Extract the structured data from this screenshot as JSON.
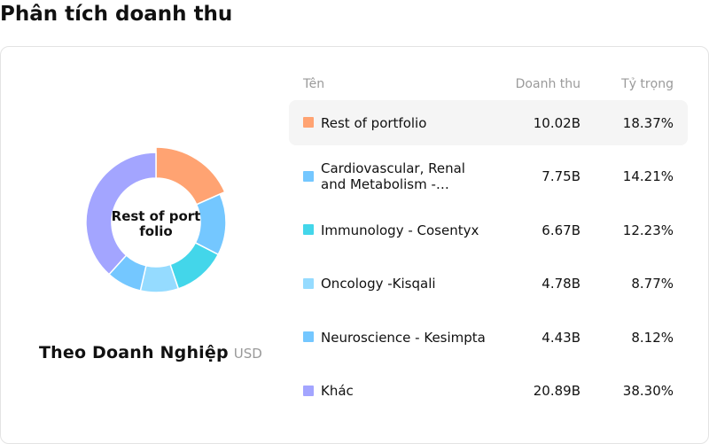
{
  "page_title": "Phân tích doanh thu",
  "donut": {
    "center_label": "Rest of portfolio",
    "caption": "Theo Doanh Nghiệp",
    "unit": "USD"
  },
  "table": {
    "headers": {
      "name": "Tên",
      "revenue": "Doanh thu",
      "share": "Tỷ trọng"
    },
    "rows": [
      {
        "name": "Rest of portfolio",
        "revenue": "10.02B",
        "share": "18.37%",
        "color": "#FFA372",
        "highlighted": true
      },
      {
        "name": "Cardiovascular, Renal and Metabolism -…",
        "revenue": "7.75B",
        "share": "14.21%",
        "color": "#74C7FF"
      },
      {
        "name": "Immunology - Cosentyx",
        "revenue": "6.67B",
        "share": "12.23%",
        "color": "#43D6EA"
      },
      {
        "name": "Oncology -Kisqali",
        "revenue": "4.78B",
        "share": "8.77%",
        "color": "#95DBFF"
      },
      {
        "name": "Neuroscience - Kesimpta",
        "revenue": "4.43B",
        "share": "8.12%",
        "color": "#74C7FF"
      },
      {
        "name": "Khác",
        "revenue": "20.89B",
        "share": "38.30%",
        "color": "#A3A5FF"
      }
    ]
  },
  "chart_data": {
    "type": "pie",
    "categories": [
      "Rest of portfolio",
      "Cardiovascular, Renal and Metabolism -…",
      "Immunology - Cosentyx",
      "Oncology -Kisqali",
      "Neuroscience - Kesimpta",
      "Khác"
    ],
    "values": [
      10.02,
      7.75,
      6.67,
      4.78,
      4.43,
      20.89
    ],
    "shares": [
      18.37,
      14.21,
      12.23,
      8.77,
      8.12,
      38.3
    ],
    "colors": [
      "#FFA372",
      "#74C7FF",
      "#43D6EA",
      "#95DBFF",
      "#74C7FF",
      "#A3A5FF"
    ],
    "highlighted_index": 0,
    "unit": "USD"
  }
}
